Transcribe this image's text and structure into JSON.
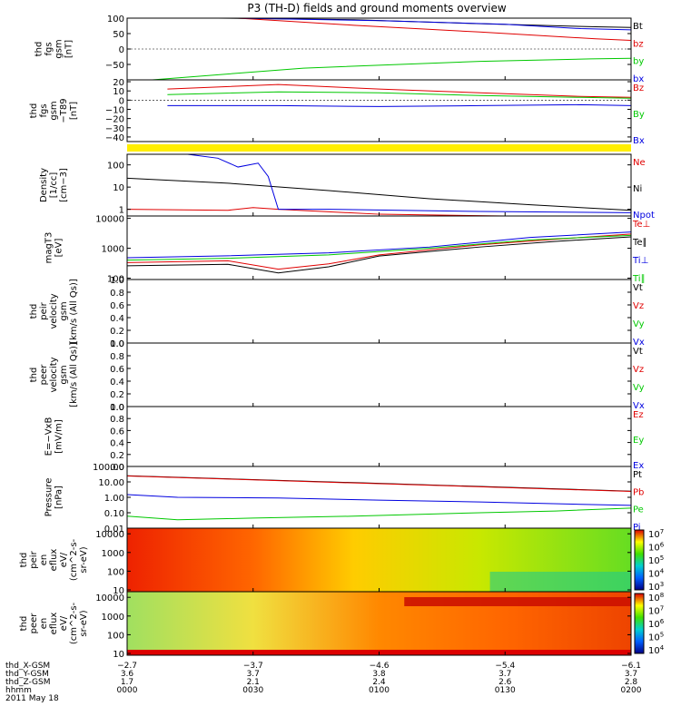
{
  "title": "P3 (TH-D) fields and ground moments overview",
  "colors": {
    "black": "#000000",
    "red": "#e00000",
    "green": "#00c800",
    "blue": "#0000e0",
    "yellow": "#ffee00"
  },
  "chart_data": [
    {
      "panel": "fgs_gsm",
      "type": "line",
      "ylabel": [
        "thd",
        "fgs",
        "gsm",
        "[nT]"
      ],
      "ylim": [
        -100,
        100
      ],
      "yticks": [
        "100",
        "50",
        "0",
        "−50"
      ],
      "ytick_values": [
        100,
        50,
        0,
        -50
      ],
      "legend": [
        "Bt",
        "bz",
        "by",
        "bx"
      ],
      "series": [
        {
          "name": "Bt",
          "color": "black",
          "x": [
            0.18,
            0.45,
            0.7,
            0.93,
            1.0
          ],
          "y": [
            105,
            95,
            82,
            72,
            70
          ]
        },
        {
          "name": "bz",
          "color": "red",
          "x": [
            0.22,
            0.45,
            0.7,
            0.93,
            1.0
          ],
          "y": [
            100,
            77,
            55,
            33,
            28
          ]
        },
        {
          "name": "by",
          "color": "green",
          "x": [
            0.05,
            0.35,
            0.7,
            0.92,
            1.0
          ],
          "y": [
            -100,
            -62,
            -40,
            -32,
            -30
          ]
        },
        {
          "name": "bx",
          "color": "blue",
          "x": [
            0.22,
            0.5,
            0.75,
            0.9,
            1.0
          ],
          "y": [
            100,
            92,
            80,
            66,
            62
          ]
        }
      ]
    },
    {
      "panel": "fgs_gsm_mp",
      "type": "line",
      "ylabel": [
        "thd",
        "fgs",
        "gsm",
        "−T89",
        "[nT]"
      ],
      "ylim": [
        -45,
        22
      ],
      "yticks": [
        "20",
        "10",
        "0",
        "−10",
        "−20",
        "−30",
        "−40"
      ],
      "ytick_values": [
        20,
        10,
        0,
        -10,
        -20,
        -30,
        -40
      ],
      "legend": [
        "Bz",
        "By",
        "Bx"
      ],
      "series": [
        {
          "name": "Bz",
          "color": "red",
          "x": [
            0.08,
            0.3,
            0.5,
            0.7,
            0.9,
            1.0
          ],
          "y": [
            12,
            17,
            12,
            8,
            4,
            3
          ]
        },
        {
          "name": "By",
          "color": "green",
          "x": [
            0.08,
            0.3,
            0.5,
            0.7,
            0.9,
            1.0
          ],
          "y": [
            6,
            9,
            8,
            5,
            3,
            2
          ]
        },
        {
          "name": "Bx",
          "color": "blue",
          "x": [
            0.08,
            0.3,
            0.5,
            0.7,
            0.9,
            1.0
          ],
          "y": [
            -6,
            -6,
            -7,
            -6,
            -5,
            -6
          ]
        }
      ]
    },
    {
      "panel": "density",
      "type": "line",
      "yscale": "log",
      "ylabel": [
        "Density",
        "[1/cc]",
        "[cm−3]"
      ],
      "ylim": [
        0.5,
        300
      ],
      "yticks": [
        "100",
        "10",
        "1"
      ],
      "ytick_values": [
        100,
        10,
        1
      ],
      "legend": [
        "Ne",
        "Ni",
        "Npot"
      ],
      "series": [
        {
          "name": "Ne",
          "color": "red",
          "x": [
            0.0,
            0.2,
            0.25,
            0.3,
            0.5,
            0.75,
            1.0
          ],
          "y": [
            1.0,
            0.9,
            1.2,
            1.0,
            0.6,
            0.5,
            0.45
          ]
        },
        {
          "name": "Ni",
          "color": "black",
          "x": [
            0.0,
            0.2,
            0.4,
            0.6,
            0.8,
            1.0
          ],
          "y": [
            25,
            15,
            7,
            3,
            1.6,
            0.9
          ]
        },
        {
          "name": "Npot",
          "color": "blue",
          "x": [
            0.12,
            0.18,
            0.22,
            0.26,
            0.28,
            0.3,
            0.4,
            0.7,
            1.0
          ],
          "y": [
            300,
            200,
            80,
            120,
            30,
            1.0,
            1.0,
            0.8,
            0.7
          ]
        }
      ]
    },
    {
      "panel": "temperature",
      "type": "line",
      "yscale": "log",
      "ylabel": [
        "magT3",
        "[eV]"
      ],
      "ylim": [
        90,
        12000
      ],
      "yticks": [
        "10000",
        "1000",
        "100"
      ],
      "ytick_values": [
        10000,
        1000,
        100
      ],
      "legend": [
        "Te⊥",
        "Te∥",
        "Ti⊥",
        "Ti∥"
      ],
      "series": [
        {
          "name": "Te⊥",
          "color": "red",
          "x": [
            0.0,
            0.2,
            0.3,
            0.4,
            0.5,
            0.7,
            0.85,
            1.0
          ],
          "y": [
            330,
            380,
            200,
            300,
            600,
            1300,
            2000,
            3000
          ]
        },
        {
          "name": "Te∥",
          "color": "black",
          "x": [
            0.0,
            0.2,
            0.3,
            0.4,
            0.5,
            0.7,
            0.85,
            1.0
          ],
          "y": [
            260,
            290,
            150,
            240,
            550,
            1100,
            1700,
            2400
          ]
        },
        {
          "name": "Ti⊥",
          "color": "blue",
          "x": [
            0.0,
            0.2,
            0.4,
            0.6,
            0.8,
            1.0
          ],
          "y": [
            480,
            560,
            700,
            1100,
            2300,
            3500
          ]
        },
        {
          "name": "Ti∥",
          "color": "green",
          "x": [
            0.0,
            0.2,
            0.4,
            0.6,
            0.8,
            1.0
          ],
          "y": [
            400,
            460,
            600,
            1000,
            1900,
            2700
          ]
        }
      ]
    },
    {
      "panel": "peir_velocity",
      "type": "line",
      "ylabel": [
        "thd",
        "peir",
        "velocity",
        "gsm",
        "[km/s (All Qs)]"
      ],
      "ylim": [
        0,
        1
      ],
      "yticks": [
        "1.0",
        "0.8",
        "0.6",
        "0.4",
        "0.2",
        "0.0"
      ],
      "ytick_values": [
        1,
        0.8,
        0.6,
        0.4,
        0.2,
        0
      ],
      "legend": [
        "Vt",
        "Vz",
        "Vy",
        "Vx"
      ],
      "series": []
    },
    {
      "panel": "peer_velocity",
      "type": "line",
      "ylabel": [
        "thd",
        "peer",
        "velocity",
        "gsm",
        "[km/s (All Qs)]"
      ],
      "ylim": [
        0,
        1
      ],
      "yticks": [
        "1.0",
        "0.8",
        "0.6",
        "0.4",
        "0.2",
        "0.0"
      ],
      "ytick_values": [
        1,
        0.8,
        0.6,
        0.4,
        0.2,
        0
      ],
      "legend": [
        "Vt",
        "Vz",
        "Vy",
        "Vx"
      ],
      "series": []
    },
    {
      "panel": "efield",
      "type": "line",
      "ylabel": [
        "E=−VxB",
        "[mV/m]"
      ],
      "ylim": [
        0,
        1
      ],
      "yticks": [
        "1.0",
        "0.8",
        "0.6",
        "0.4",
        "0.2",
        "0.0"
      ],
      "ytick_values": [
        1,
        0.8,
        0.6,
        0.4,
        0.2,
        0
      ],
      "legend": [
        "Ez",
        "Ey",
        "Ex"
      ],
      "series": []
    },
    {
      "panel": "pressure",
      "type": "line",
      "yscale": "log",
      "ylabel": [
        "Pressure",
        "[nPa]"
      ],
      "ylim": [
        0.01,
        100
      ],
      "yticks": [
        "100.00",
        "10.00",
        "1.00",
        "0.10",
        "0.01"
      ],
      "ytick_values": [
        100,
        10,
        1,
        0.1,
        0.01
      ],
      "legend": [
        "Pt",
        "Pb",
        "Pe",
        "Pi"
      ],
      "series": [
        {
          "name": "Pt",
          "color": "black",
          "x": [
            0.0,
            0.25,
            0.5,
            0.75,
            1.0
          ],
          "y": [
            25,
            14,
            8,
            4.5,
            2.5
          ]
        },
        {
          "name": "Pb",
          "color": "red",
          "x": [
            0.0,
            0.25,
            0.5,
            0.75,
            1.0
          ],
          "y": [
            24,
            13.5,
            7.6,
            4.3,
            2.4
          ]
        },
        {
          "name": "Pe",
          "color": "green",
          "x": [
            0.0,
            0.1,
            0.25,
            0.45,
            0.7,
            0.85,
            1.0
          ],
          "y": [
            0.06,
            0.035,
            0.045,
            0.06,
            0.1,
            0.13,
            0.2
          ]
        },
        {
          "name": "Pi",
          "color": "blue",
          "x": [
            0.0,
            0.1,
            0.3,
            0.5,
            0.7,
            0.9,
            1.0
          ],
          "y": [
            1.5,
            1.0,
            0.9,
            0.65,
            0.5,
            0.35,
            0.3
          ]
        }
      ]
    },
    {
      "panel": "peir_eflux",
      "type": "heatmap",
      "yscale": "log",
      "ylabel": [
        "thd",
        "peir",
        "en",
        "eflux",
        "eV/",
        "(cm^2-s-",
        "sr-eV)"
      ],
      "yticks": [
        "10000",
        "1000",
        "100",
        "10"
      ],
      "ytick_values": [
        10000,
        1000,
        100,
        10
      ],
      "colorbar_ticks": [
        "10^7",
        "10^6",
        "10^5",
        "10^4",
        "10^3"
      ]
    },
    {
      "panel": "peer_eflux",
      "type": "heatmap",
      "yscale": "log",
      "ylabel": [
        "thd",
        "peer",
        "en",
        "eflux",
        "eV/",
        "(cm^2-s-",
        "sr-eV)"
      ],
      "yticks": [
        "10000",
        "1000",
        "100",
        "10"
      ],
      "ytick_values": [
        10000,
        1000,
        100,
        10
      ],
      "colorbar_ticks": [
        "10^8",
        "10^7",
        "10^6",
        "10^5",
        "10^4"
      ]
    }
  ],
  "xaxis": {
    "row_labels": [
      "thd_X-GSM",
      "thd_Y-GSM",
      "thd_Z-GSM",
      "hhmm",
      "2011 May 18"
    ],
    "ticks": [
      {
        "x": 0.0,
        "X": "−2.7",
        "Y": "3.6",
        "Z": "1.7",
        "hhmm": "0000"
      },
      {
        "x": 0.25,
        "X": "−3.7",
        "Y": "3.7",
        "Z": "2.1",
        "hhmm": "0030"
      },
      {
        "x": 0.5,
        "X": "−4.6",
        "Y": "3.8",
        "Z": "2.4",
        "hhmm": "0100"
      },
      {
        "x": 0.75,
        "X": "−5.4",
        "Y": "3.7",
        "Z": "2.6",
        "hhmm": "0130"
      },
      {
        "x": 1.0,
        "X": "−6.1",
        "Y": "3.7",
        "Z": "2.8",
        "hhmm": "0200"
      }
    ]
  }
}
